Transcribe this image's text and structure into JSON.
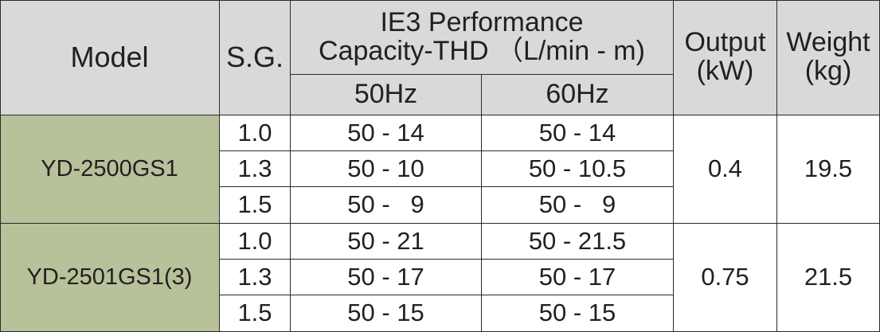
{
  "header": {
    "model": "Model",
    "sg": "S.G.",
    "performance_line1": "IE3  Performance",
    "performance_line2": "Capacity-THD （L/min - m)",
    "hz50": "50Hz",
    "hz60": "60Hz",
    "output_line1": "Output",
    "output_line2": "(kW)",
    "weight_line1": "Weight",
    "weight_line2": "(kg)"
  },
  "groups": [
    {
      "model": "YD-2500GS1",
      "output": "0.4",
      "weight": "19.5",
      "rows": [
        {
          "sg": "1.0",
          "hz50": "50 - 14",
          "hz60": "50 - 14"
        },
        {
          "sg": "1.3",
          "hz50": "50 - 10",
          "hz60": "50 - 10.5"
        },
        {
          "sg": "1.5",
          "hz50": "50 -   9",
          "hz60": "50 -   9"
        }
      ]
    },
    {
      "model": "YD-2501GS1(3)",
      "output": "0.75",
      "weight": "21.5",
      "rows": [
        {
          "sg": "1.0",
          "hz50": "50 - 21",
          "hz60": "50 - 21.5"
        },
        {
          "sg": "1.3",
          "hz50": "50 - 17",
          "hz60": "50 - 17"
        },
        {
          "sg": "1.5",
          "hz50": "50 - 15",
          "hz60": "50 - 15"
        }
      ]
    }
  ],
  "colors": {
    "header_bg": "#d9d9d9",
    "model_bg": "#b7c19a",
    "border": "#2a2a2a"
  }
}
